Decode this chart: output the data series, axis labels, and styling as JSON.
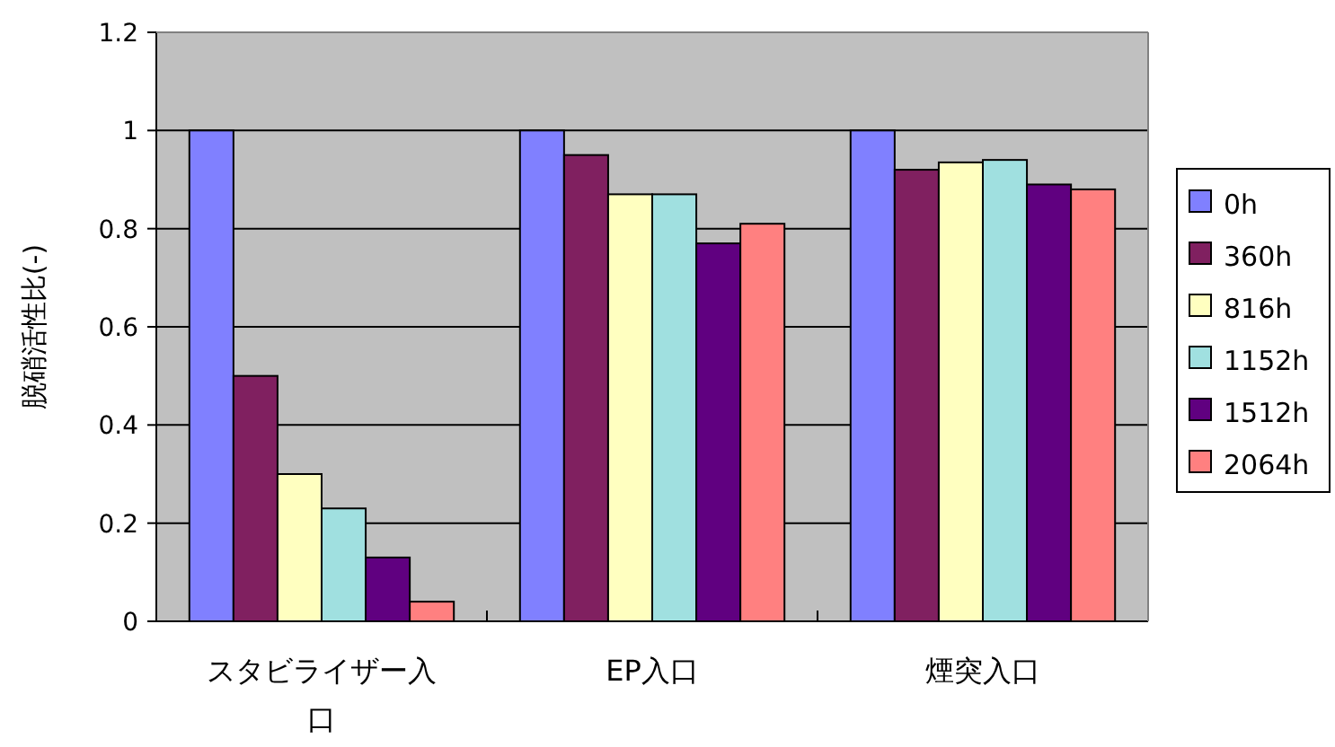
{
  "chart_data": {
    "type": "bar",
    "ylabel": "脱硝活性比(-)",
    "categories": [
      "スタビライザー入口",
      "EP入口",
      "煙突入口"
    ],
    "series": [
      {
        "name": "0h",
        "color": "#8080ff",
        "values": [
          1,
          1,
          1
        ]
      },
      {
        "name": "360h",
        "color": "#802060",
        "values": [
          0.5,
          0.95,
          0.92
        ]
      },
      {
        "name": "816h",
        "color": "#ffffc0",
        "values": [
          0.3,
          0.87,
          0.935
        ]
      },
      {
        "name": "1152h",
        "color": "#a0e0e0",
        "values": [
          0.23,
          0.87,
          0.94
        ]
      },
      {
        "name": "1512h",
        "color": "#600080",
        "values": [
          0.13,
          0.77,
          0.89
        ]
      },
      {
        "name": "2064h",
        "color": "#ff8080",
        "values": [
          0.04,
          0.81,
          0.88
        ]
      }
    ],
    "ylim": [
      0,
      1.2
    ],
    "yticks": [
      0,
      0.2,
      0.4,
      0.6,
      0.8,
      1,
      1.2
    ],
    "grid": "y",
    "legend": "right"
  }
}
